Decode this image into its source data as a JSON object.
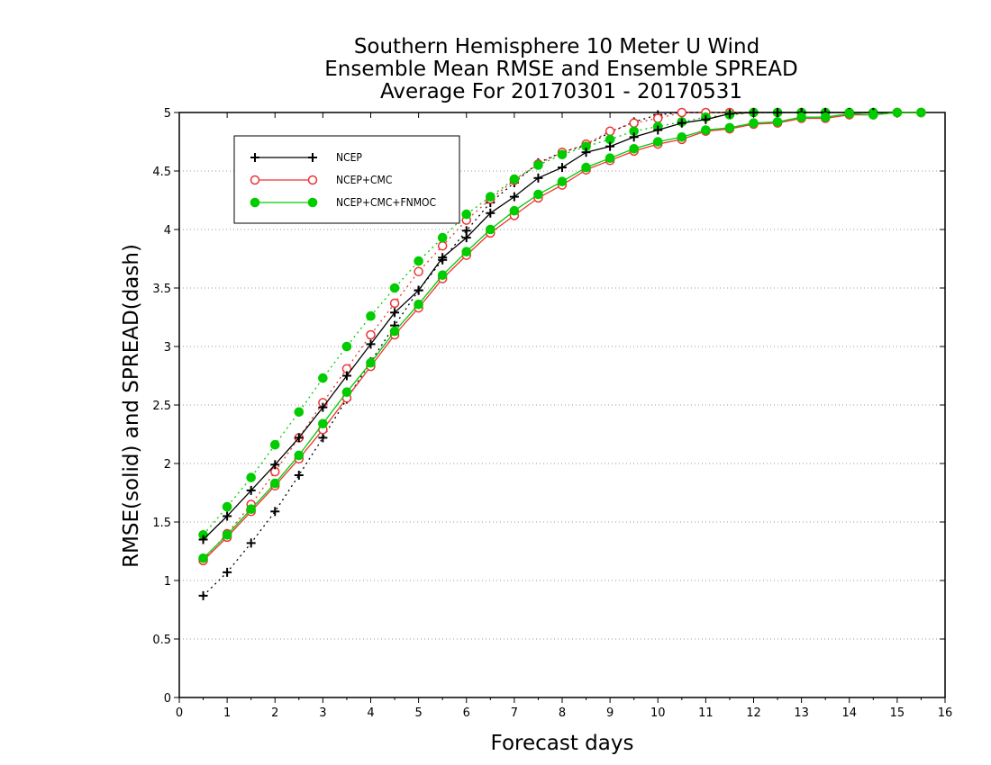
{
  "chart_data": {
    "type": "line",
    "title_lines": [
      "Southern Hemisphere 10 Meter U Wind",
      "Ensemble Mean RMSE and Ensemble SPREAD",
      "Average For 20170301 - 20170531"
    ],
    "xlabel": "Forecast days",
    "ylabel": "RMSE(solid) and SPREAD(dash)",
    "xlim": [
      0,
      16
    ],
    "ylim": [
      0,
      5
    ],
    "x_ticks": [
      "0",
      "1",
      "2",
      "3",
      "4",
      "5",
      "6",
      "7",
      "8",
      "9",
      "10",
      "11",
      "12",
      "13",
      "14",
      "15",
      "16"
    ],
    "y_ticks": [
      "0",
      "0.5",
      "1",
      "1.5",
      "2",
      "2.5",
      "3",
      "3.5",
      "4",
      "4.5",
      "5"
    ],
    "grid": "horizontal dotted",
    "legend_position": "top-left",
    "x": [
      0.5,
      1,
      1.5,
      2,
      2.5,
      3,
      3.5,
      4,
      4.5,
      5,
      5.5,
      6,
      6.5,
      7,
      7.5,
      8,
      8.5,
      9,
      9.5,
      10,
      10.5,
      11,
      11.5,
      12,
      12.5,
      13,
      13.5,
      14,
      14.5,
      15,
      15.5
    ],
    "series": [
      {
        "name": "NCEP",
        "color": "#000000",
        "marker": "plus",
        "rmse": [
          1.35,
          1.55,
          1.77,
          1.99,
          2.22,
          2.48,
          2.75,
          3.02,
          3.29,
          3.48,
          3.76,
          3.93,
          4.14,
          4.28,
          4.44,
          4.53,
          4.66,
          4.71,
          4.79,
          4.85,
          4.91,
          4.94,
          4.99,
          5.0,
          5.0,
          5.0,
          5.0,
          5.0,
          5.0,
          5.0,
          5.0
        ],
        "spread": [
          0.87,
          1.07,
          1.32,
          1.59,
          1.9,
          2.22,
          2.55,
          2.87,
          3.18,
          3.48,
          3.74,
          3.99,
          4.23,
          4.4,
          4.57,
          4.66,
          4.72,
          4.83,
          4.92,
          4.98,
          5.0,
          5.0,
          5.0,
          5.0,
          5.0,
          5.0,
          5.0,
          5.0,
          5.0,
          5.0,
          5.0
        ]
      },
      {
        "name": "NCEP+CMC",
        "color": "#ee3333",
        "marker": "open-circle",
        "rmse": [
          1.17,
          1.37,
          1.59,
          1.81,
          2.04,
          2.29,
          2.56,
          2.83,
          3.1,
          3.33,
          3.58,
          3.78,
          3.97,
          4.12,
          4.27,
          4.38,
          4.51,
          4.59,
          4.67,
          4.73,
          4.77,
          4.84,
          4.86,
          4.9,
          4.91,
          4.95,
          4.95,
          4.98,
          4.98,
          5.0,
          5.0
        ],
        "spread": [
          1.18,
          1.4,
          1.65,
          1.93,
          2.22,
          2.52,
          2.81,
          3.1,
          3.37,
          3.64,
          3.86,
          4.08,
          4.26,
          4.42,
          4.56,
          4.66,
          4.73,
          4.84,
          4.91,
          4.95,
          5.0,
          5.0,
          5.0,
          5.0,
          5.0,
          5.0,
          5.0,
          5.0,
          5.0,
          5.0,
          5.0
        ]
      },
      {
        "name": "NCEP+CMC+FNMOC",
        "color": "#00cc00",
        "marker": "filled-circle",
        "rmse": [
          1.19,
          1.39,
          1.61,
          1.83,
          2.07,
          2.34,
          2.61,
          2.86,
          3.13,
          3.36,
          3.61,
          3.81,
          4.0,
          4.16,
          4.3,
          4.41,
          4.53,
          4.61,
          4.69,
          4.75,
          4.79,
          4.85,
          4.87,
          4.91,
          4.92,
          4.96,
          4.96,
          4.99,
          4.98,
          5.0,
          5.0
        ],
        "spread": [
          1.39,
          1.63,
          1.88,
          2.16,
          2.44,
          2.73,
          3.0,
          3.26,
          3.5,
          3.73,
          3.93,
          4.13,
          4.28,
          4.43,
          4.55,
          4.64,
          4.71,
          4.77,
          4.84,
          4.88,
          4.92,
          4.96,
          4.98,
          5.0,
          5.0,
          5.0,
          5.0,
          5.0,
          5.0,
          5.0,
          5.0
        ]
      }
    ]
  }
}
